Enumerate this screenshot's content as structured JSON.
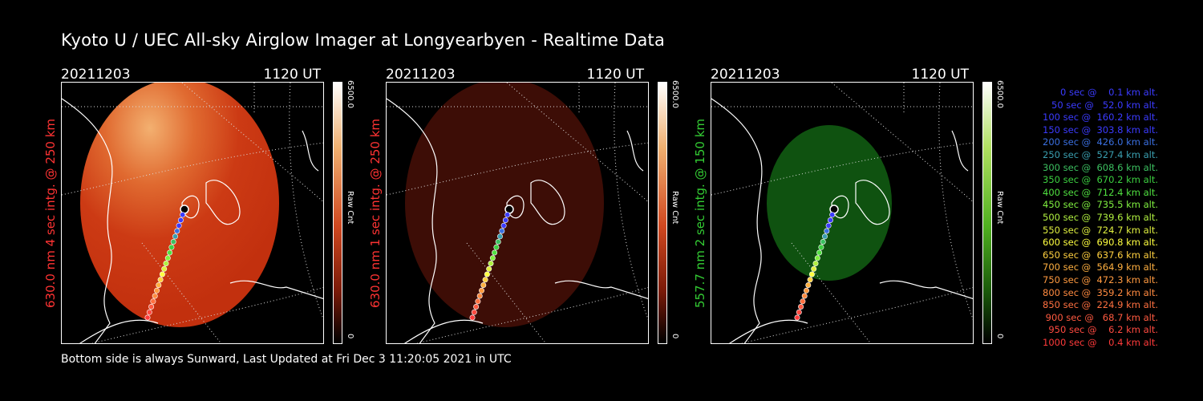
{
  "title": "Kyoto U / UEC All-sky Airglow Imager at Longyearbyen - Realtime Data",
  "footer": "Bottom side is always Sunward, Last Updated at Fri Dec  3 11:20:05 2021 in UTC",
  "panels": [
    {
      "date": "20211203",
      "time": "1120 UT",
      "side_label": "630.0 nm 4 sec intg. @ 250 km",
      "side_color": "#ff3333",
      "cbar_max": "6500.0",
      "cbar_label": "Raw Cnt",
      "cbar_min": "0"
    },
    {
      "date": "20211203",
      "time": "1120 UT",
      "side_label": "630.0 nm 1 sec intg. @ 250 km",
      "side_color": "#ff3333",
      "cbar_max": "6500.0",
      "cbar_label": "Raw Cnt",
      "cbar_min": "0"
    },
    {
      "date": "20211203",
      "time": "1120 UT",
      "side_label": "557.7 nm 2 sec intg. @ 150 km",
      "side_color": "#33cc33",
      "cbar_max": "6500.0",
      "cbar_label": "Raw Cnt",
      "cbar_min": "0"
    }
  ],
  "legend": [
    {
      "text": "   0 sec @    0.1 km alt.",
      "color": "#3b3bff"
    },
    {
      "text": "  50 sec @   52.0 km alt.",
      "color": "#3b3bff"
    },
    {
      "text": " 100 sec @  160.2 km alt.",
      "color": "#3b3bff"
    },
    {
      "text": " 150 sec @  303.8 km alt.",
      "color": "#3b3bff"
    },
    {
      "text": " 200 sec @  426.0 km alt.",
      "color": "#3a6fe0"
    },
    {
      "text": " 250 sec @  527.4 km alt.",
      "color": "#3a9fb0"
    },
    {
      "text": " 300 sec @  608.6 km alt.",
      "color": "#3cc060"
    },
    {
      "text": " 350 sec @  670.2 km alt.",
      "color": "#3cd040"
    },
    {
      "text": " 400 sec @  712.4 km alt.",
      "color": "#50e040"
    },
    {
      "text": " 450 sec @  735.5 km alt.",
      "color": "#80f040"
    },
    {
      "text": " 500 sec @  739.6 km alt.",
      "color": "#b0f040"
    },
    {
      "text": " 550 sec @  724.7 km alt.",
      "color": "#e0f040"
    },
    {
      "text": " 600 sec @  690.8 km alt.",
      "color": "#ffff40"
    },
    {
      "text": " 650 sec @  637.6 km alt.",
      "color": "#ffd040"
    },
    {
      "text": " 700 sec @  564.9 km alt.",
      "color": "#ffb040"
    },
    {
      "text": " 750 sec @  472.3 km alt.",
      "color": "#ff9a40"
    },
    {
      "text": " 800 sec @  359.2 km alt.",
      "color": "#ff8a40"
    },
    {
      "text": " 850 sec @  224.9 km alt.",
      "color": "#ff7040"
    },
    {
      "text": " 900 sec @   68.7 km alt.",
      "color": "#ff5a40"
    },
    {
      "text": " 950 sec @    6.2 km alt.",
      "color": "#ff4a40"
    },
    {
      "text": "1000 sec @    0.4 km alt.",
      "color": "#ff3a3a"
    }
  ]
}
